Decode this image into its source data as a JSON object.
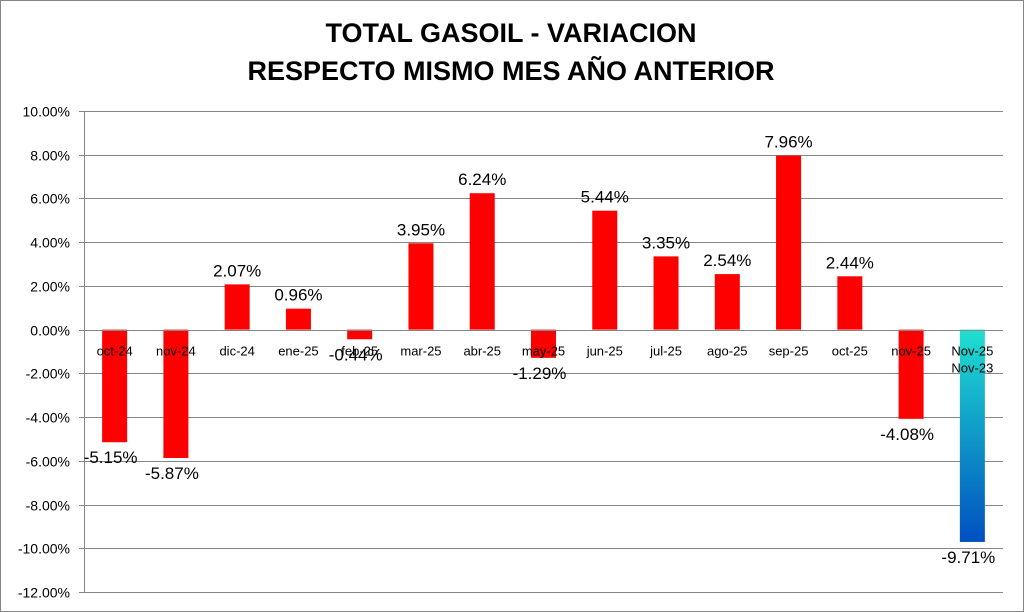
{
  "chart_data": {
    "type": "bar",
    "title_line1": "TOTAL GASOIL - VARIACION",
    "title_line2": "RESPECTO MISMO MES AÑO ANTERIOR",
    "ylim": [
      -12,
      10
    ],
    "y_ticks": [
      10,
      8,
      6,
      4,
      2,
      0,
      -2,
      -4,
      -6,
      -8,
      -10,
      -12
    ],
    "y_tick_labels": [
      "10.00%",
      "8.00%",
      "6.00%",
      "4.00%",
      "2.00%",
      "0.00%",
      "-2.00%",
      "-4.00%",
      "-6.00%",
      "-8.00%",
      "-10.00%",
      "-12.00%"
    ],
    "grid": "horizontal",
    "legend": "none",
    "categories": [
      "oct-24",
      "nov-24",
      "dic-24",
      "ene-25",
      "feb-25",
      "mar-25",
      "abr-25",
      "may-25",
      "jun-25",
      "jul-25",
      "ago-25",
      "sep-25",
      "oct-25",
      "nov-25",
      "Nov-25\nNov-23"
    ],
    "values": [
      -5.15,
      -5.87,
      2.07,
      0.96,
      -0.44,
      3.95,
      6.24,
      -1.29,
      5.44,
      3.35,
      2.54,
      7.96,
      2.44,
      -4.08,
      -9.71
    ],
    "data_labels": [
      "-5.15%",
      "-5.87%",
      "2.07%",
      "0.96%",
      "-0.44%",
      "3.95%",
      "6.24%",
      "-1.29%",
      "5.44%",
      "3.35%",
      "2.54%",
      "7.96%",
      "2.44%",
      "-4.08%",
      "-9.71%"
    ],
    "colors": {
      "bar": "#ff0000",
      "last_bar_gradient": [
        "#1fe0d0",
        "#0050c0"
      ],
      "grid": "#868686",
      "axis": "#868686",
      "text": "#000000"
    }
  }
}
